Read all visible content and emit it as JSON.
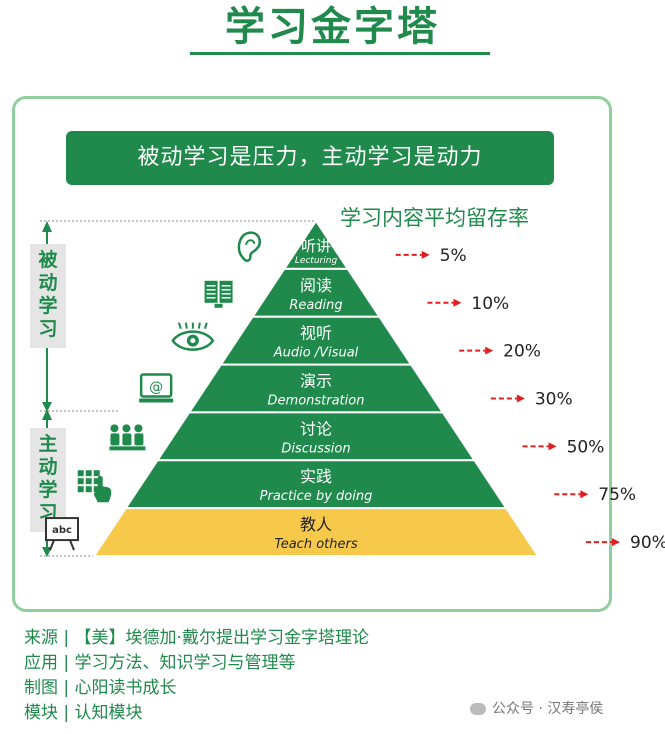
{
  "header": {
    "title": "学习金字塔"
  },
  "banner": {
    "text": "被动学习是压力，主动学习是动力"
  },
  "subtitle": "学习内容平均留存率",
  "side_labels": {
    "passive": "被动学习",
    "active": "主动学习"
  },
  "chart_data": {
    "type": "pyramid",
    "levels": [
      {
        "name": "听讲",
        "en": "Lecturing",
        "value": 5,
        "label": "5%",
        "color": "#1f8a4c",
        "icon": "ear-icon"
      },
      {
        "name": "阅读",
        "en": "Reading",
        "value": 10,
        "label": "10%",
        "color": "#1f8a4c",
        "icon": "book-icon"
      },
      {
        "name": "视听",
        "en": "Audio /Visual",
        "value": 20,
        "label": "20%",
        "color": "#1f8a4c",
        "icon": "eye-icon"
      },
      {
        "name": "演示",
        "en": "Demonstration",
        "value": 30,
        "label": "30%",
        "color": "#1f8a4c",
        "icon": "monitor-icon"
      },
      {
        "name": "讨论",
        "en": "Discussion",
        "value": 50,
        "label": "50%",
        "color": "#1f8a4c",
        "icon": "group-icon"
      },
      {
        "name": "实践",
        "en": "Practice by doing",
        "value": 75,
        "label": "75%",
        "color": "#1f8a4c",
        "icon": "hand-keypad-icon"
      },
      {
        "name": "教人",
        "en": "Teach others",
        "value": 90,
        "label": "90%",
        "color": "#f7c94a",
        "icon": "whiteboard-icon"
      }
    ]
  },
  "footer": {
    "lines": [
      "来源 | 【美】埃德加·戴尔提出学习金字塔理论",
      "应用 | 学习方法、知识学习与管理等",
      "制图 | 心阳读书成长",
      "模块 | 认知模块"
    ],
    "brand": "公众号 · 汉寿亭侯"
  },
  "colors": {
    "green": "#1f8a4c",
    "light_green": "#8fcf9e",
    "gold": "#f7c94a",
    "arrow": "#e02020"
  }
}
